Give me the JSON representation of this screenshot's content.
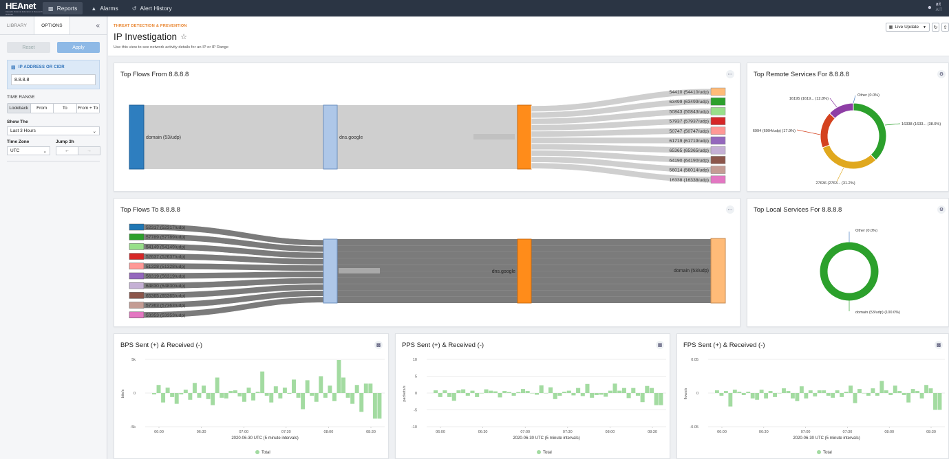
{
  "nav": {
    "logo": "HEAnet",
    "logo_tagline": "Ireland's National Education & Research Network",
    "items": [
      {
        "label": "Reports",
        "icon": "folder-icon"
      },
      {
        "label": "Alarms",
        "icon": "bell-icon"
      },
      {
        "label": "Alert History",
        "icon": "history-icon"
      }
    ],
    "user": {
      "name": "ait",
      "role": "AIT"
    }
  },
  "sidebar": {
    "tabs": [
      "LIBRARY",
      "OPTIONS"
    ],
    "reset_label": "Reset",
    "apply_label": "Apply",
    "ip_label": "IP ADDRESS OR CIDR",
    "ip_value": "8.8.8.8",
    "time_range_label": "TIME RANGE",
    "time_range_options": [
      "Lookback",
      "From",
      "To",
      "From + To"
    ],
    "show_the_label": "Show The",
    "show_the_value": "Last 3 Hours",
    "time_zone_label": "Time Zone",
    "time_zone_value": "UTC",
    "jump_label": "Jump 3h",
    "jump_back": "←",
    "jump_forward": "→"
  },
  "header": {
    "breadcrumb": "THREAT DETECTION & PREVENTION",
    "title": "IP Investigation",
    "subtitle": "Use this view to see network activity details for an IP or IP Range",
    "live_update": "Live Update"
  },
  "panels": {
    "flows_from": {
      "title": "Top Flows From 8.8.8.8",
      "left_node": "domain (53/udp)",
      "middle_node": "dns.google",
      "targets": [
        "54410 (54410/udp)",
        "63499 (63499/udp)",
        "50843 (50843/udp)",
        "57937 (57937/udp)",
        "50747 (50747/udp)",
        "61719 (61719/udp)",
        "65365 (65365/udp)",
        "64190 (64190/udp)",
        "56014 (56014/udp)",
        "16338 (16338/udp)"
      ],
      "colors": [
        "#ffbb78",
        "#2ca02c",
        "#98df8a",
        "#d62728",
        "#ff9896",
        "#9467bd",
        "#c5b0d5",
        "#8c564b",
        "#c49c94",
        "#e377c2"
      ]
    },
    "flows_to": {
      "title": "Top Flows To 8.8.8.8",
      "sources": [
        "52317 (52317/udp)",
        "57789 (57789/udp)",
        "54149 (54149/udp)",
        "52637 (52637/udp)",
        "51328 (51328/udp)",
        "56319 (56319/udp)",
        "64830 (64830/udp)",
        "65365 (65365/udp)",
        "57363 (57363/udp)",
        "53353 (53353/udp)"
      ],
      "colors": [
        "#1f77b4",
        "#2ca02c",
        "#98df8a",
        "#d62728",
        "#ff9896",
        "#9467bd",
        "#c5b0d5",
        "#8c564b",
        "#c49c94",
        "#e377c2"
      ],
      "middle_node": "dns.google",
      "right_node": "domain (53/udp)"
    },
    "remote_services": {
      "title": "Top Remote Services For 8.8.8.8"
    },
    "local_services": {
      "title": "Top Local Services For 8.8.8.8"
    },
    "bps": {
      "title": "BPS Sent (+) & Received (-)"
    },
    "pps": {
      "title": "PPS Sent (+) & Received (-)"
    },
    "fps": {
      "title": "FPS Sent (+) & Received (-)"
    }
  },
  "chart_data": [
    {
      "type": "pie",
      "title": "Top Remote Services For 8.8.8.8",
      "labels": [
        "16338 (1633... (38.0%)",
        "27636 (2763... (31.2%)",
        "6994 (6994/udp) (17.9%)",
        "16195 (1619... (12.8%)",
        "Other (0.0%)"
      ],
      "values": [
        38.0,
        31.2,
        17.9,
        12.8,
        0.0
      ],
      "colors": [
        "#2ca02c",
        "#e0a81e",
        "#d4421f",
        "#8e3ea5",
        "#4a7fc1"
      ]
    },
    {
      "type": "pie",
      "title": "Top Local Services For 8.8.8.8",
      "labels": [
        "domain (53/udp) (100.0%)",
        "Other (0.0%)"
      ],
      "values": [
        100.0,
        0.0
      ],
      "colors": [
        "#2ca02c",
        "#4a7fc1"
      ]
    },
    {
      "type": "bar",
      "title": "BPS Sent (+) & Received (-)",
      "ylabel": "bits/s",
      "xlabel": "2020-06-30 UTC (5 minute intervals)",
      "yticks": [
        "5k",
        "0",
        "-5k"
      ],
      "ylim": [
        -5000,
        5000
      ],
      "xticks": [
        "06:00",
        "06:30",
        "07:00",
        "07:30",
        "08:00",
        "08:30"
      ],
      "legend": "Total",
      "values": [
        -200,
        1200,
        -1400,
        800,
        -600,
        -1600,
        -200,
        500,
        -1000,
        1500,
        -700,
        1100,
        -900,
        -1800,
        2300,
        -700,
        -800,
        300,
        400,
        -500,
        -1300,
        800,
        -1100,
        200,
        3200,
        -400,
        -1400,
        1000,
        -800,
        800,
        -100,
        2000,
        -700,
        -2400,
        1900,
        -400,
        -1300,
        2500,
        -700,
        1100,
        -1200,
        4900,
        2300,
        -700,
        -1600,
        1200,
        -2800,
        1400,
        1400,
        -3800,
        -3800
      ]
    },
    {
      "type": "bar",
      "title": "PPS Sent (+) & Received (-)",
      "ylabel": "packets/s",
      "xlabel": "2020-06-30 UTC (5 minute intervals)",
      "yticks": [
        "10",
        "5",
        "0",
        "-5",
        "-10"
      ],
      "ylim": [
        -10,
        10
      ],
      "xticks": [
        "06:00",
        "06:30",
        "07:00",
        "07:30",
        "08:00",
        "08:30"
      ],
      "legend": "Total",
      "values": [
        0.8,
        -1.2,
        0.8,
        -1.2,
        -2.3,
        0.8,
        1.1,
        -0.8,
        0.7,
        -1.2,
        0,
        1.1,
        0.7,
        0.5,
        -1.3,
        0.6,
        0.3,
        -0.8,
        0.3,
        1.2,
        0.6,
        0,
        -0.5,
        2.3,
        0,
        1.7,
        -1.8,
        -0.8,
        0.4,
        0.7,
        -0.7,
        1.5,
        -0.9,
        2.7,
        -1.4,
        -0.6,
        -0.5,
        -1.1,
        0.7,
        2.8,
        0.7,
        1.5,
        -1.5,
        1.5,
        -0.8,
        -2.7,
        2.1,
        1.5,
        -3.6,
        -3.6
      ]
    },
    {
      "type": "bar",
      "title": "FPS Sent (+) & Received (-)",
      "ylabel": "flows/s",
      "xlabel": "2020-06-30 UTC (5 minute intervals)",
      "yticks": [
        "0.05",
        "0",
        "-0.05"
      ],
      "ylim": [
        -0.05,
        0.05
      ],
      "xticks": [
        "06:00",
        "06:30",
        "07:00",
        "07:30",
        "08:00",
        "08:30"
      ],
      "legend": "Total",
      "values": [
        0.004,
        -0.004,
        0.003,
        -0.02,
        0.005,
        0.002,
        -0.003,
        0.002,
        -0.008,
        -0.01,
        0.005,
        -0.008,
        0.003,
        -0.006,
        0,
        0.007,
        0.003,
        -0.008,
        -0.012,
        0.01,
        -0.008,
        0.004,
        -0.005,
        0.004,
        0.004,
        -0.004,
        -0.007,
        0.004,
        -0.006,
        0.002,
        0.011,
        -0.015,
        0.006,
        0,
        -0.004,
        0.007,
        -0.004,
        0.018,
        0.004,
        -0.003,
        0.011,
        0.003,
        -0.003,
        -0.014,
        0.006,
        0.003,
        -0.008,
        0.012,
        0.007,
        -0.025,
        -0.025
      ]
    }
  ]
}
